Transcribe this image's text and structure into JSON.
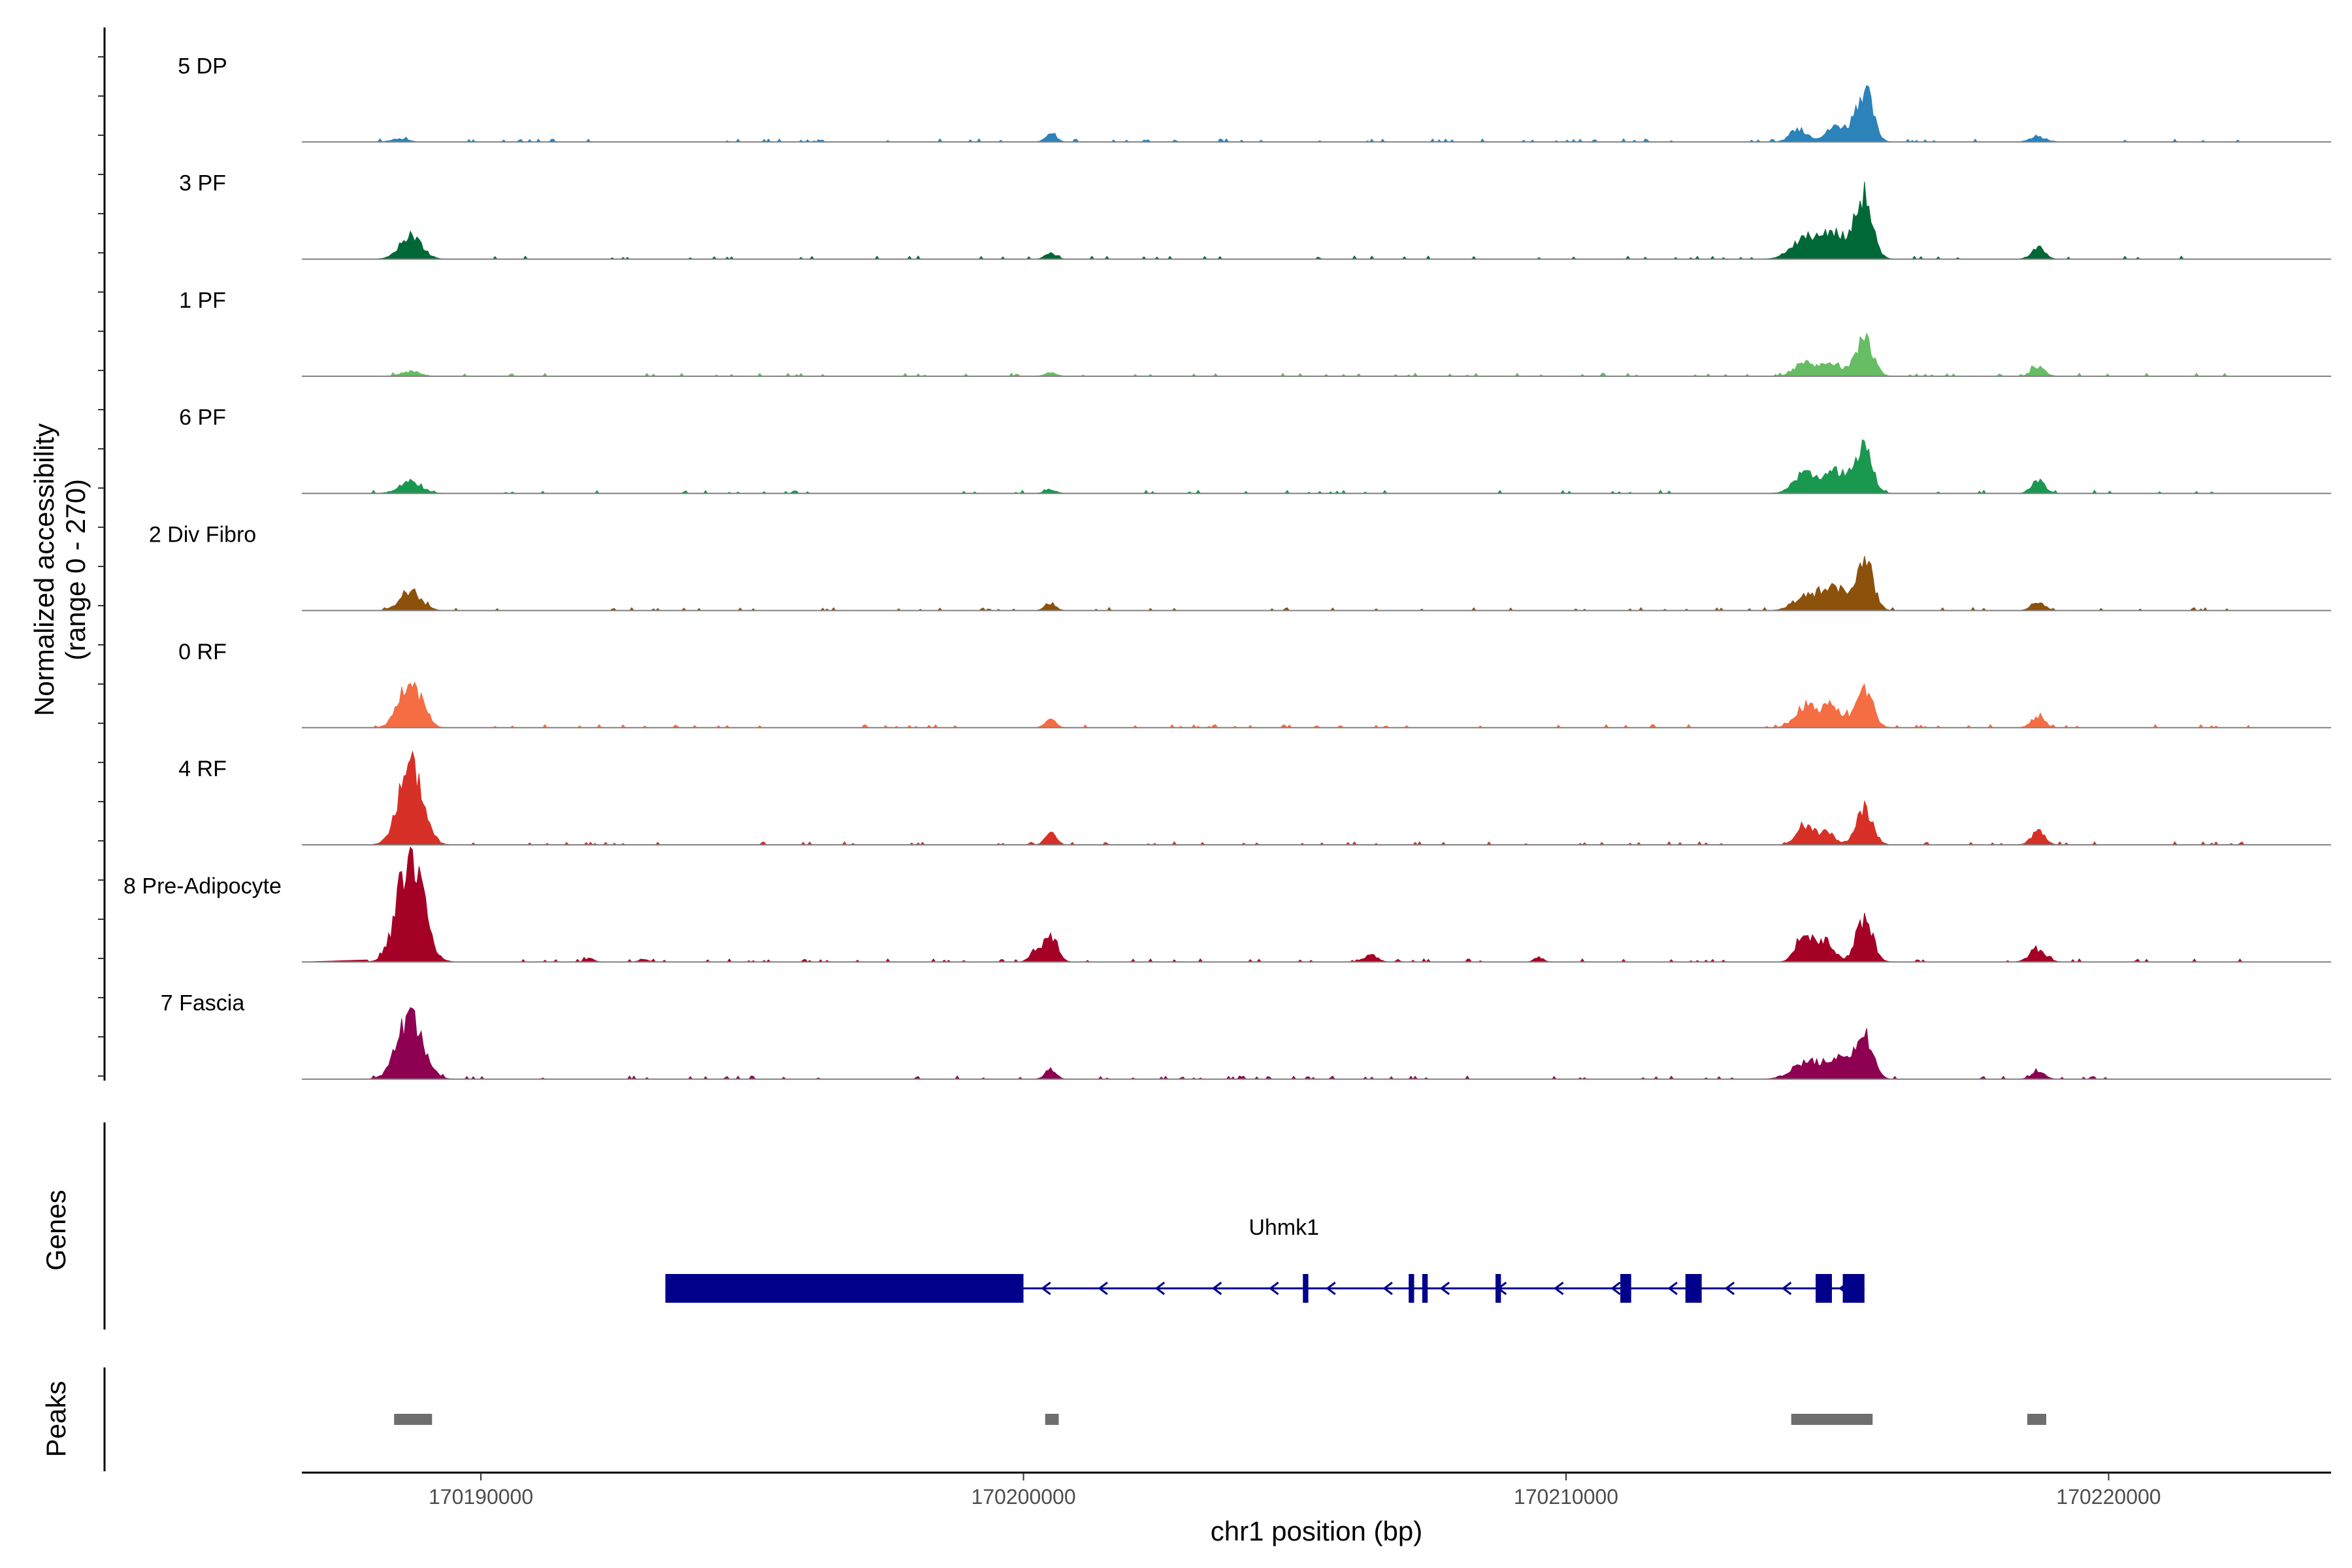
{
  "chart_data": {
    "type": "area",
    "title": "",
    "ylabel_lines": [
      "Normalized accessibility",
      "(range 0 - 270)"
    ],
    "xlabel": "chr1 position (bp)",
    "ylim": [
      0,
      270
    ],
    "xlim": [
      170186700,
      170224100
    ],
    "x_ticks": [
      170190000,
      170200000,
      170210000,
      170220000
    ],
    "x_tick_labels": [
      "170190000",
      "170200000",
      "170210000",
      "170220000"
    ],
    "tracks": [
      {
        "name": "5 DP",
        "color": "#2b83ba",
        "peaks": [
          [
            170188500,
            8,
            150
          ],
          [
            170200500,
            20,
            100
          ],
          [
            170214300,
            30,
            160
          ],
          [
            170215000,
            40,
            200
          ],
          [
            170215500,
            130,
            150
          ],
          [
            170218700,
            12,
            150
          ]
        ]
      },
      {
        "name": "3 PF",
        "color": "#006837",
        "peaks": [
          [
            170188700,
            60,
            200
          ],
          [
            170200500,
            15,
            100
          ],
          [
            170214400,
            50,
            250
          ],
          [
            170215000,
            60,
            300
          ],
          [
            170215500,
            150,
            150
          ],
          [
            170218700,
            30,
            120
          ]
        ]
      },
      {
        "name": "1 PF",
        "color": "#66bd63",
        "peaks": [
          [
            170188700,
            12,
            180
          ],
          [
            170200500,
            10,
            100
          ],
          [
            170214400,
            35,
            180
          ],
          [
            170214900,
            35,
            180
          ],
          [
            170215500,
            100,
            150
          ],
          [
            170218700,
            25,
            120
          ]
        ]
      },
      {
        "name": "6 PF",
        "color": "#1a9850",
        "peaks": [
          [
            170188700,
            30,
            200
          ],
          [
            170200500,
            10,
            100
          ],
          [
            170214400,
            50,
            200
          ],
          [
            170215000,
            55,
            250
          ],
          [
            170215500,
            110,
            150
          ],
          [
            170218700,
            35,
            120
          ]
        ]
      },
      {
        "name": "2 Div Fibro",
        "color": "#8c510a",
        "peaks": [
          [
            170188700,
            45,
            200
          ],
          [
            170200500,
            18,
            100
          ],
          [
            170214500,
            40,
            250
          ],
          [
            170215000,
            50,
            200
          ],
          [
            170215500,
            135,
            150
          ],
          [
            170218700,
            22,
            120
          ]
        ]
      },
      {
        "name": "0 RF",
        "color": "#f46d43",
        "peaks": [
          [
            170188700,
            120,
            200
          ],
          [
            170200500,
            20,
            100
          ],
          [
            170214400,
            55,
            180
          ],
          [
            170214900,
            55,
            200
          ],
          [
            170215500,
            100,
            150
          ],
          [
            170218700,
            28,
            120
          ]
        ]
      },
      {
        "name": "4 RF",
        "color": "#d73027",
        "peaks": [
          [
            170188700,
            215,
            210
          ],
          [
            170200500,
            30,
            100
          ],
          [
            170214400,
            50,
            150
          ],
          [
            170214800,
            30,
            150
          ],
          [
            170215500,
            90,
            150
          ],
          [
            170218700,
            35,
            120
          ]
        ]
      },
      {
        "name": "8 Pre-Adipocyte",
        "color": "#a50026",
        "peaks": [
          [
            170188700,
            270,
            230
          ],
          [
            170200500,
            70,
            120
          ],
          [
            170200200,
            25,
            100
          ],
          [
            170214400,
            75,
            150
          ],
          [
            170214800,
            50,
            150
          ],
          [
            170215500,
            110,
            150
          ],
          [
            170218700,
            30,
            150
          ],
          [
            170192000,
            10,
            80
          ],
          [
            170193000,
            8,
            80
          ],
          [
            170206400,
            18,
            120
          ],
          [
            170209500,
            12,
            80
          ]
        ]
      },
      {
        "name": "7 Fascia",
        "color": "#8e0152",
        "peaks": [
          [
            170188700,
            160,
            230
          ],
          [
            170200500,
            25,
            100
          ],
          [
            170214400,
            40,
            250
          ],
          [
            170215000,
            50,
            250
          ],
          [
            170215500,
            110,
            150
          ],
          [
            170218700,
            20,
            120
          ]
        ]
      }
    ],
    "genes_label": "Genes",
    "gene": {
      "name": "Uhmk1",
      "color": "#00008b",
      "start": 170193400,
      "end": 170215500,
      "strand": "-",
      "exons": [
        [
          170193400,
          170200000
        ],
        [
          170205150,
          170205250
        ],
        [
          170207100,
          170207200
        ],
        [
          170207350,
          170207450
        ],
        [
          170208700,
          170208800
        ],
        [
          170211000,
          170211200
        ],
        [
          170212200,
          170212500
        ],
        [
          170214600,
          170214900
        ],
        [
          170215100,
          170215500
        ]
      ]
    },
    "peaks_label": "Peaks",
    "peak_regions": [
      [
        170188400,
        170189100
      ],
      [
        170200400,
        170200650
      ],
      [
        170214150,
        170215650
      ],
      [
        170218500,
        170218850
      ]
    ]
  }
}
